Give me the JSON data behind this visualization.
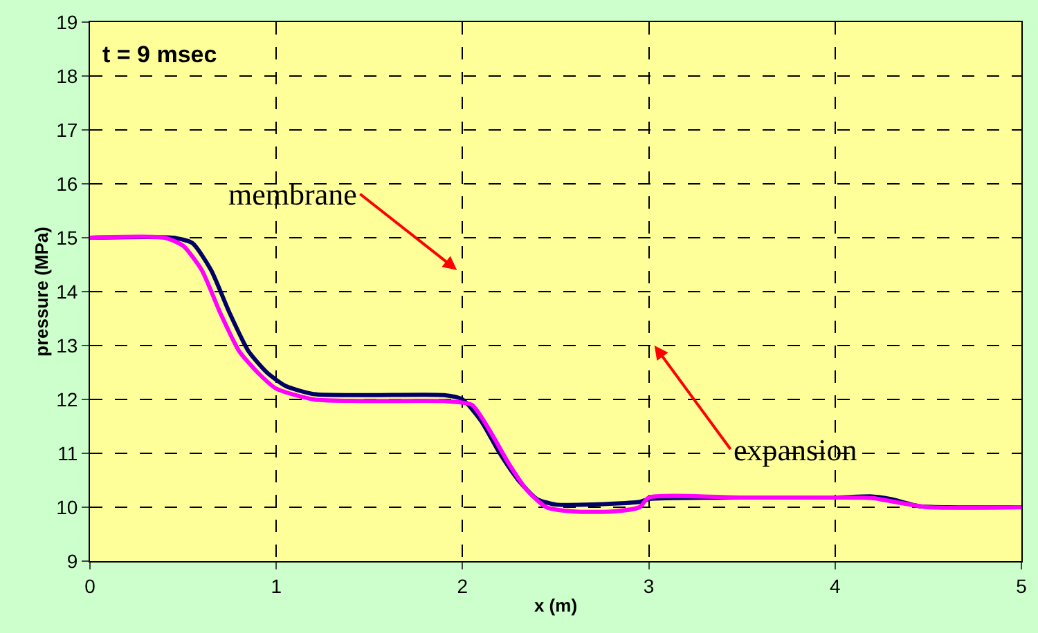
{
  "chart_data": {
    "type": "line",
    "xlabel": "x (m)",
    "ylabel": "pressure (MPa)",
    "xlim": [
      0,
      5
    ],
    "xticks": [
      0,
      1,
      2,
      3,
      4,
      5
    ],
    "ylim": [
      9,
      19
    ],
    "yticks": [
      9,
      10,
      11,
      12,
      13,
      14,
      15,
      16,
      17,
      18,
      19
    ],
    "grid": true,
    "marker": "none",
    "line_style": "solid",
    "annotations": [
      "t = 9 msec",
      "membrane",
      "expansion"
    ],
    "series": [
      {
        "color": "#000066",
        "x": [
          0,
          0.45,
          0.55,
          0.65,
          0.75,
          0.85,
          0.95,
          1.05,
          1.2,
          1.5,
          1.9,
          2.0,
          2.1,
          2.2,
          2.3,
          2.4,
          2.5,
          2.7,
          2.95,
          3.0,
          3.5,
          4.0,
          4.2,
          4.3,
          4.45,
          4.6,
          5
        ],
        "values": [
          15,
          15,
          14.9,
          14.4,
          13.6,
          12.9,
          12.5,
          12.25,
          12.1,
          12.08,
          12.08,
          12.0,
          11.6,
          11.0,
          10.5,
          10.15,
          10.05,
          10.05,
          10.1,
          10.15,
          10.18,
          10.18,
          10.2,
          10.15,
          10.02,
          10.0,
          10.0
        ]
      },
      {
        "color": "#ff00ff",
        "x": [
          0,
          0.4,
          0.5,
          0.6,
          0.7,
          0.8,
          0.9,
          1.0,
          1.2,
          1.5,
          1.9,
          2.05,
          2.15,
          2.25,
          2.35,
          2.45,
          2.6,
          2.8,
          2.95,
          3.0,
          3.5,
          4.0,
          4.2,
          4.35,
          4.5,
          5
        ],
        "values": [
          15,
          15,
          14.85,
          14.4,
          13.6,
          12.9,
          12.5,
          12.2,
          12.0,
          11.97,
          11.97,
          11.9,
          11.4,
          10.8,
          10.3,
          10.0,
          9.92,
          9.92,
          10.0,
          10.18,
          10.18,
          10.18,
          10.17,
          10.08,
          10.0,
          10.0
        ]
      }
    ]
  }
}
